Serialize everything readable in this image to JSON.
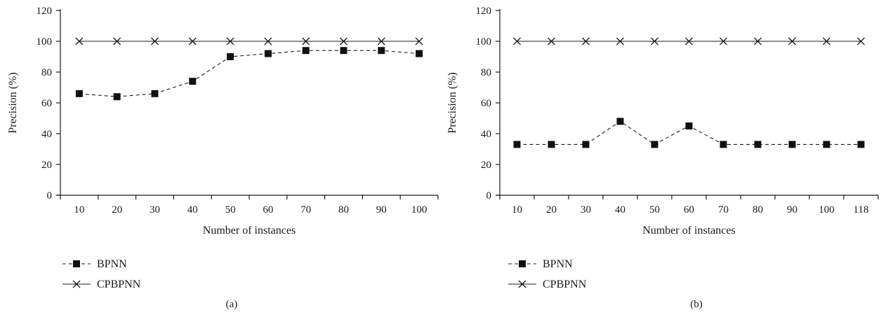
{
  "chart_data": [
    {
      "type": "line",
      "panel_label": "(a)",
      "categories": [
        "10",
        "20",
        "30",
        "40",
        "50",
        "60",
        "70",
        "80",
        "90",
        "100"
      ],
      "series": [
        {
          "name": "BPNN",
          "values": [
            66,
            64,
            66,
            74,
            90,
            92,
            94,
            94,
            94,
            92
          ],
          "style": "dashed",
          "marker": "square"
        },
        {
          "name": "CPBPNN",
          "values": [
            100,
            100,
            100,
            100,
            100,
            100,
            100,
            100,
            100,
            100
          ],
          "style": "solid",
          "marker": "x"
        }
      ],
      "xlabel": "Number of instances",
      "ylabel": "Precision (%)",
      "ylim": [
        0,
        120
      ],
      "yticks": [
        "0",
        "20",
        "40",
        "60",
        "80",
        "100",
        "120"
      ],
      "grid": false,
      "legend_position": "bottom-left"
    },
    {
      "type": "line",
      "panel_label": "(b)",
      "categories": [
        "10",
        "20",
        "30",
        "40",
        "50",
        "60",
        "70",
        "80",
        "90",
        "100",
        "118"
      ],
      "series": [
        {
          "name": "BPNN",
          "values": [
            33,
            33,
            33,
            48,
            33,
            45,
            33,
            33,
            33,
            33,
            33
          ],
          "style": "dashed",
          "marker": "square"
        },
        {
          "name": "CPBPNN",
          "values": [
            100,
            100,
            100,
            100,
            100,
            100,
            100,
            100,
            100,
            100,
            100
          ],
          "style": "solid",
          "marker": "x"
        }
      ],
      "xlabel": "Number of instances",
      "ylabel": "Precision (%)",
      "ylim": [
        0,
        120
      ],
      "yticks": [
        "0",
        "20",
        "40",
        "60",
        "80",
        "100",
        "120"
      ],
      "grid": false,
      "legend_position": "bottom-left"
    }
  ]
}
